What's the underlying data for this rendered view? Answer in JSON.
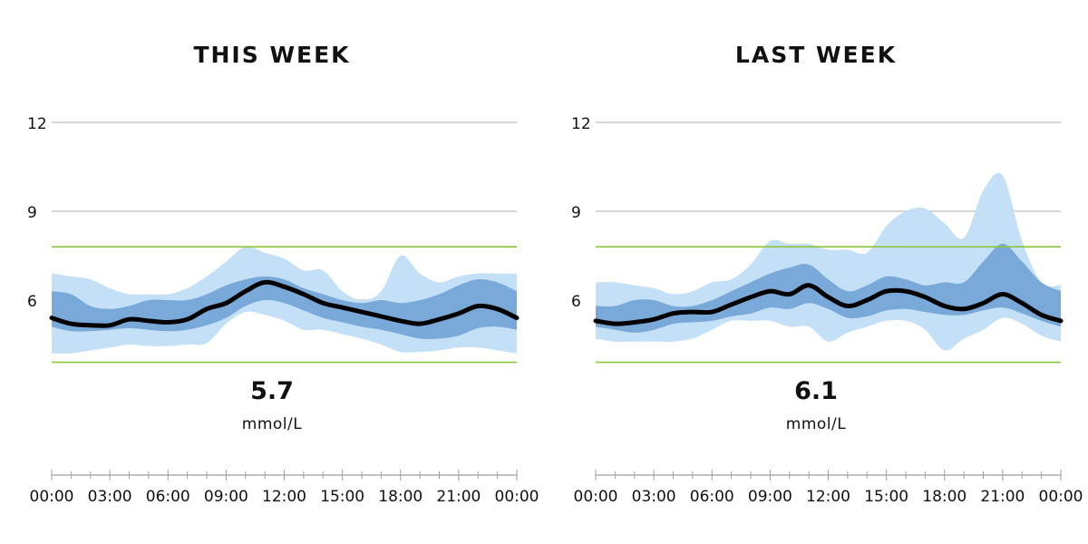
{
  "chart_data": [
    {
      "type": "area",
      "title": "THIS WEEK",
      "average": "5.7",
      "unit": "mmol/L",
      "y_ticks": [
        "12",
        "9",
        "6"
      ],
      "y_tick_values": [
        12,
        9,
        6
      ],
      "ylim": [
        3.5,
        12.5
      ],
      "target_range": [
        3.9,
        7.8
      ],
      "x_ticks": [
        "00:00",
        "03:00",
        "06:00",
        "09:00",
        "12:00",
        "15:00",
        "18:00",
        "21:00",
        "00:00"
      ],
      "x_hours": [
        0,
        1,
        2,
        3,
        4,
        5,
        6,
        7,
        8,
        9,
        10,
        11,
        12,
        13,
        14,
        15,
        16,
        17,
        18,
        19,
        20,
        21,
        22,
        23,
        24
      ],
      "series": [
        {
          "role": "range-outer-upper",
          "values": [
            6.9,
            6.8,
            6.7,
            6.4,
            6.2,
            6.2,
            6.2,
            6.4,
            6.8,
            7.3,
            7.8,
            7.6,
            7.4,
            7.0,
            7.0,
            6.3,
            6.0,
            6.3,
            7.5,
            6.9,
            6.6,
            6.8,
            6.9,
            6.9,
            6.9
          ]
        },
        {
          "role": "range-inner-upper",
          "values": [
            6.3,
            6.2,
            5.8,
            5.7,
            5.8,
            6.0,
            6.0,
            6.0,
            6.2,
            6.5,
            6.7,
            6.8,
            6.7,
            6.4,
            6.2,
            6.0,
            5.9,
            6.0,
            5.9,
            6.0,
            6.2,
            6.5,
            6.7,
            6.6,
            6.3
          ]
        },
        {
          "role": "median",
          "values": [
            5.4,
            5.2,
            5.15,
            5.15,
            5.35,
            5.3,
            5.25,
            5.35,
            5.7,
            5.9,
            6.3,
            6.6,
            6.45,
            6.2,
            5.9,
            5.75,
            5.6,
            5.45,
            5.3,
            5.2,
            5.35,
            5.55,
            5.8,
            5.7,
            5.4
          ]
        },
        {
          "role": "range-inner-lower",
          "values": [
            5.1,
            4.95,
            4.95,
            5.0,
            5.05,
            5.0,
            4.95,
            5.0,
            5.15,
            5.4,
            5.8,
            6.0,
            5.9,
            5.65,
            5.4,
            5.25,
            5.1,
            5.0,
            4.85,
            4.7,
            4.7,
            4.8,
            5.05,
            5.1,
            5.0
          ]
        },
        {
          "role": "range-outer-lower",
          "values": [
            4.2,
            4.2,
            4.3,
            4.4,
            4.5,
            4.45,
            4.45,
            4.5,
            4.55,
            5.2,
            5.6,
            5.5,
            5.3,
            5.0,
            5.0,
            4.85,
            4.7,
            4.5,
            4.25,
            4.25,
            4.3,
            4.4,
            4.4,
            4.3,
            4.2
          ]
        }
      ],
      "colors": {
        "outer_band": "#c4e0f7",
        "inner_band": "#79a9d9",
        "median": "#000000",
        "target": "#8cc63f",
        "grid": "#bdbdbd",
        "axis": "#9e9e9e"
      }
    },
    {
      "type": "area",
      "title": "LAST WEEK",
      "average": "6.1",
      "unit": "mmol/L",
      "y_ticks": [
        "12",
        "9",
        "6"
      ],
      "y_tick_values": [
        12,
        9,
        6
      ],
      "ylim": [
        3.5,
        12.5
      ],
      "target_range": [
        3.9,
        7.8
      ],
      "x_ticks": [
        "00:00",
        "03:00",
        "06:00",
        "09:00",
        "12:00",
        "15:00",
        "18:00",
        "21:00",
        "00:00"
      ],
      "x_hours": [
        0,
        1,
        2,
        3,
        4,
        5,
        6,
        7,
        8,
        9,
        10,
        11,
        12,
        13,
        14,
        15,
        16,
        17,
        18,
        19,
        20,
        21,
        22,
        23,
        24
      ],
      "series": [
        {
          "role": "range-outer-upper",
          "values": [
            6.6,
            6.6,
            6.5,
            6.4,
            6.2,
            6.3,
            6.6,
            6.7,
            7.2,
            8.0,
            7.9,
            7.9,
            7.7,
            7.7,
            7.6,
            8.5,
            9.0,
            9.1,
            8.6,
            8.1,
            9.7,
            10.2,
            8.0,
            6.6,
            6.5
          ]
        },
        {
          "role": "range-inner-upper",
          "values": [
            5.8,
            5.8,
            6.0,
            6.0,
            5.8,
            5.8,
            6.0,
            6.3,
            6.6,
            6.9,
            7.1,
            7.2,
            6.7,
            6.3,
            6.5,
            6.8,
            6.7,
            6.5,
            6.6,
            6.6,
            7.3,
            7.9,
            7.3,
            6.6,
            6.3
          ]
        },
        {
          "role": "median",
          "values": [
            5.3,
            5.2,
            5.25,
            5.35,
            5.55,
            5.6,
            5.6,
            5.85,
            6.1,
            6.3,
            6.2,
            6.5,
            6.1,
            5.8,
            6.0,
            6.3,
            6.3,
            6.1,
            5.8,
            5.7,
            5.9,
            6.2,
            5.9,
            5.5,
            5.3
          ]
        },
        {
          "role": "range-inner-lower",
          "values": [
            5.1,
            5.0,
            4.9,
            5.0,
            5.2,
            5.25,
            5.3,
            5.45,
            5.55,
            5.75,
            5.7,
            5.9,
            5.7,
            5.4,
            5.45,
            5.65,
            5.7,
            5.6,
            5.5,
            5.5,
            5.65,
            5.75,
            5.55,
            5.3,
            5.1
          ]
        },
        {
          "role": "range-outer-lower",
          "values": [
            4.7,
            4.6,
            4.6,
            4.6,
            4.6,
            4.7,
            5.0,
            5.3,
            5.3,
            5.3,
            5.1,
            5.1,
            4.6,
            4.9,
            5.1,
            5.3,
            5.3,
            5.0,
            4.3,
            4.7,
            5.0,
            5.4,
            5.2,
            4.8,
            4.6
          ]
        }
      ],
      "colors": {
        "outer_band": "#c4e0f7",
        "inner_band": "#79a9d9",
        "median": "#000000",
        "target": "#8cc63f",
        "grid": "#bdbdbd",
        "axis": "#9e9e9e"
      }
    }
  ]
}
